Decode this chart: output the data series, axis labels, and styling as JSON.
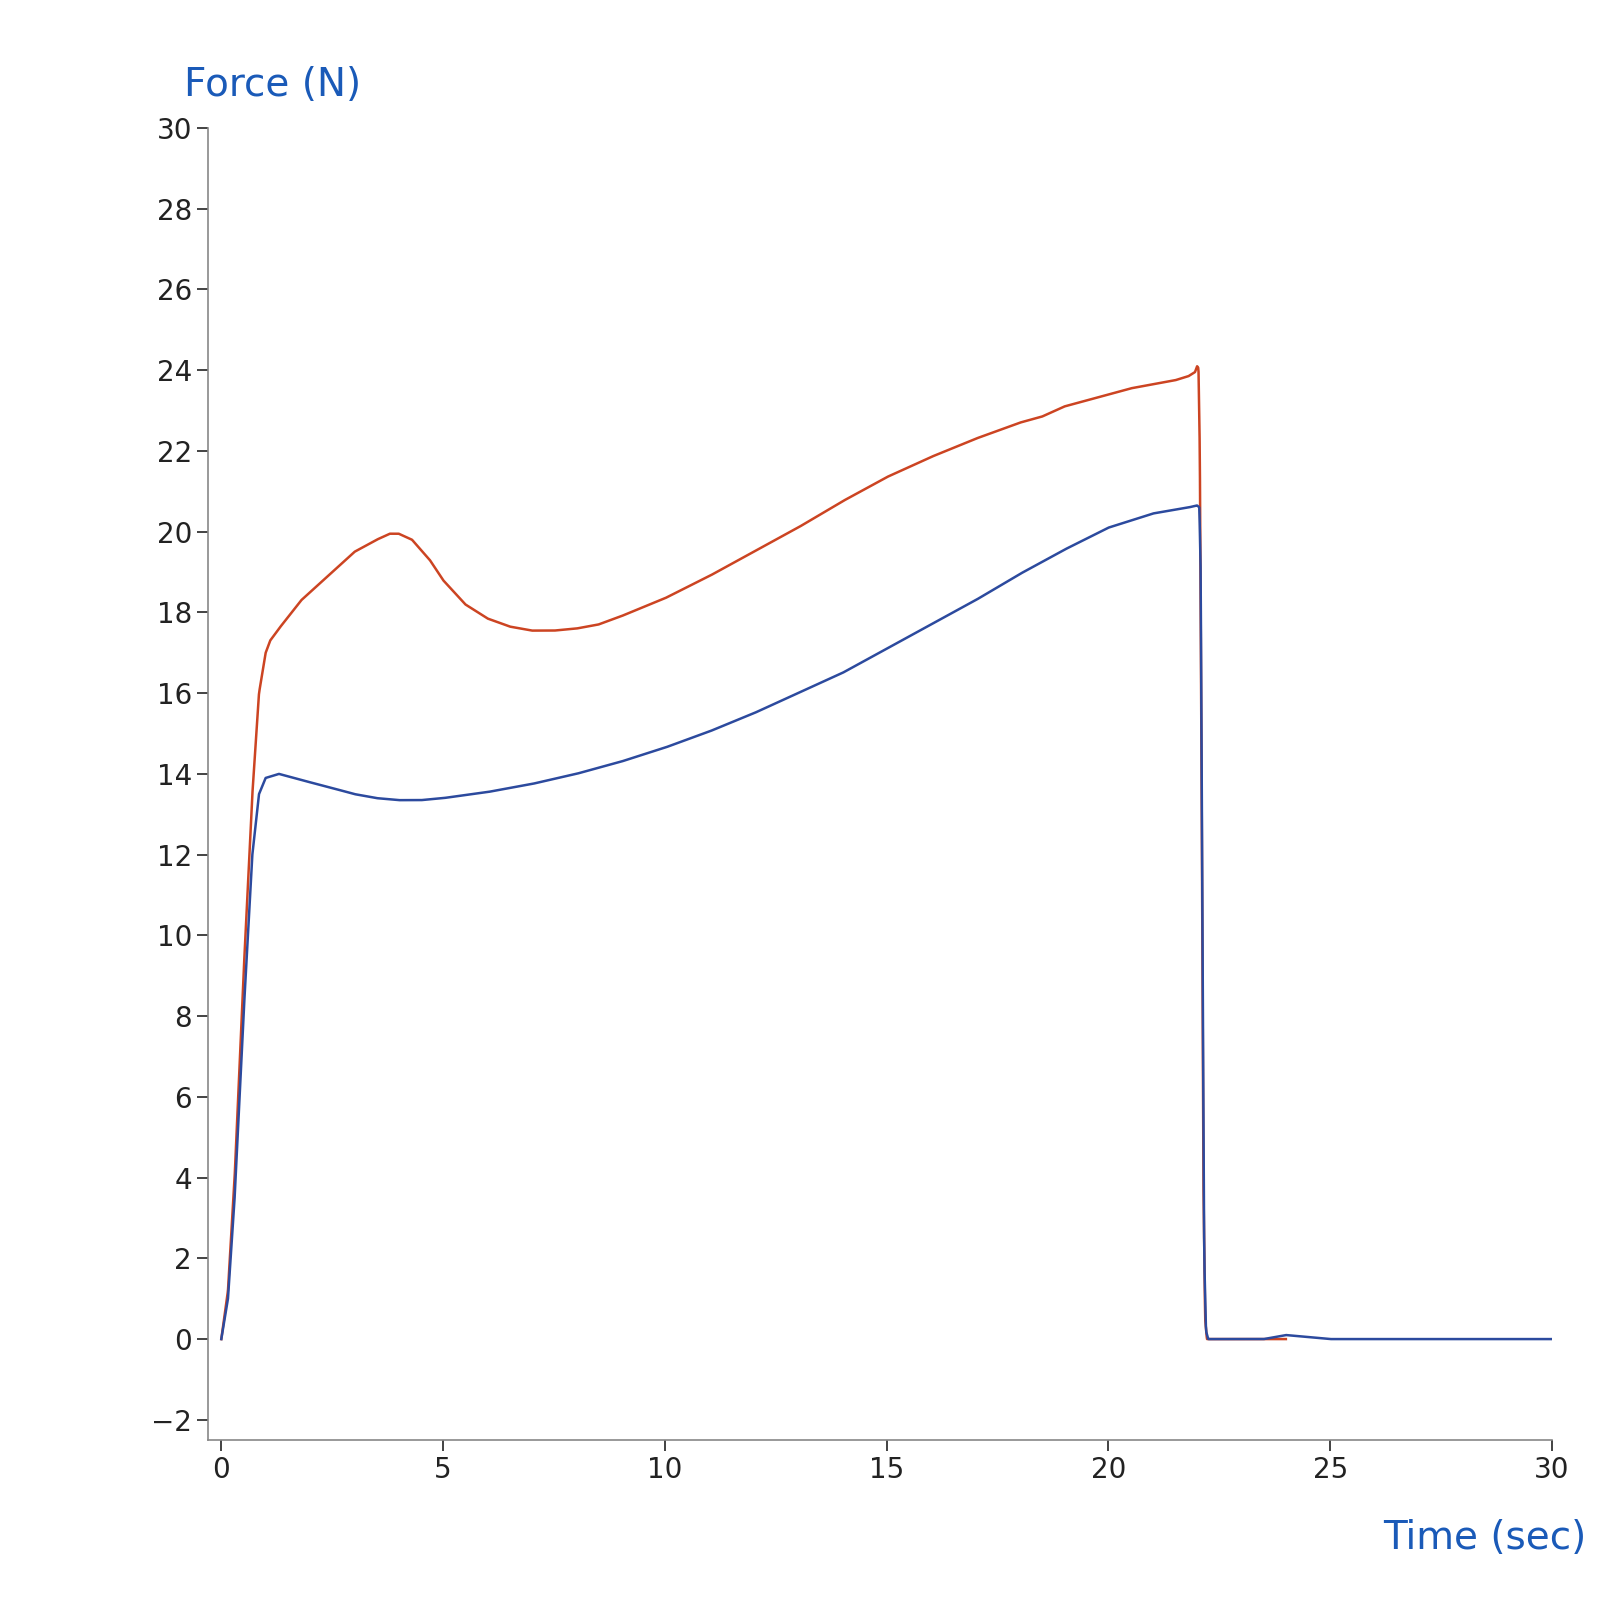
{
  "xlabel": "Time (sec)",
  "ylabel": "Force (N)",
  "xlabel_color": "#1a5ab8",
  "ylabel_color": "#1a5ab8",
  "tick_label_color": "#222222",
  "spine_color": "#888888",
  "xlim": [
    -0.3,
    30
  ],
  "ylim": [
    -2.5,
    30
  ],
  "xticks": [
    0,
    5,
    10,
    15,
    20,
    25,
    30
  ],
  "yticks": [
    -2,
    0,
    2,
    4,
    6,
    8,
    10,
    12,
    14,
    16,
    18,
    20,
    22,
    24,
    26,
    28,
    30
  ],
  "blue_color": "#2c4a9e",
  "red_color": "#cc4422",
  "figsize": [
    16,
    16
  ],
  "dpi": 100,
  "tick_fontsize": 20,
  "label_fontsize": 28,
  "blue_curve": {
    "points": [
      [
        0,
        0
      ],
      [
        0.15,
        1.0
      ],
      [
        0.3,
        3.5
      ],
      [
        0.5,
        8.0
      ],
      [
        0.7,
        12.0
      ],
      [
        0.85,
        13.5
      ],
      [
        1.0,
        13.9
      ],
      [
        1.3,
        14.0
      ],
      [
        1.8,
        13.85
      ],
      [
        2.5,
        13.65
      ],
      [
        3.0,
        13.5
      ],
      [
        3.5,
        13.4
      ],
      [
        4.0,
        13.35
      ],
      [
        4.5,
        13.35
      ],
      [
        5.0,
        13.4
      ],
      [
        6.0,
        13.55
      ],
      [
        7.0,
        13.75
      ],
      [
        8.0,
        14.0
      ],
      [
        9.0,
        14.3
      ],
      [
        10.0,
        14.65
      ],
      [
        11.0,
        15.05
      ],
      [
        12.0,
        15.5
      ],
      [
        13.0,
        16.0
      ],
      [
        14.0,
        16.5
      ],
      [
        15.0,
        17.1
      ],
      [
        16.0,
        17.7
      ],
      [
        17.0,
        18.3
      ],
      [
        18.0,
        18.95
      ],
      [
        19.0,
        19.55
      ],
      [
        20.0,
        20.1
      ],
      [
        21.0,
        20.45
      ],
      [
        21.8,
        20.6
      ],
      [
        22.0,
        20.65
      ],
      [
        22.05,
        20.6
      ],
      [
        22.08,
        19.0
      ],
      [
        22.12,
        10.0
      ],
      [
        22.16,
        2.0
      ],
      [
        22.2,
        0.2
      ],
      [
        22.25,
        0.0
      ],
      [
        23.5,
        0.0
      ],
      [
        24.0,
        0.1
      ],
      [
        24.5,
        0.05
      ],
      [
        25.0,
        0.0
      ],
      [
        30.0,
        0.0
      ]
    ]
  },
  "red_curve": {
    "points": [
      [
        0,
        0
      ],
      [
        0.15,
        1.2
      ],
      [
        0.3,
        4.0
      ],
      [
        0.5,
        9.0
      ],
      [
        0.7,
        13.5
      ],
      [
        0.85,
        16.0
      ],
      [
        1.0,
        17.0
      ],
      [
        1.1,
        17.3
      ],
      [
        1.3,
        17.6
      ],
      [
        1.8,
        18.3
      ],
      [
        2.5,
        19.0
      ],
      [
        3.0,
        19.5
      ],
      [
        3.5,
        19.8
      ],
      [
        3.8,
        19.95
      ],
      [
        4.0,
        19.95
      ],
      [
        4.3,
        19.8
      ],
      [
        4.7,
        19.3
      ],
      [
        5.0,
        18.8
      ],
      [
        5.5,
        18.2
      ],
      [
        6.0,
        17.85
      ],
      [
        6.5,
        17.65
      ],
      [
        7.0,
        17.55
      ],
      [
        7.5,
        17.55
      ],
      [
        8.0,
        17.6
      ],
      [
        8.5,
        17.7
      ],
      [
        9.0,
        17.9
      ],
      [
        10.0,
        18.35
      ],
      [
        11.0,
        18.9
      ],
      [
        12.0,
        19.5
      ],
      [
        13.0,
        20.1
      ],
      [
        14.0,
        20.75
      ],
      [
        15.0,
        21.35
      ],
      [
        16.0,
        21.85
      ],
      [
        17.0,
        22.3
      ],
      [
        18.0,
        22.7
      ],
      [
        18.5,
        22.85
      ],
      [
        19.0,
        23.1
      ],
      [
        19.5,
        23.25
      ],
      [
        20.0,
        23.4
      ],
      [
        20.5,
        23.55
      ],
      [
        21.0,
        23.65
      ],
      [
        21.5,
        23.75
      ],
      [
        21.8,
        23.85
      ],
      [
        21.95,
        23.95
      ],
      [
        22.0,
        24.1
      ],
      [
        22.03,
        24.05
      ],
      [
        22.06,
        22.0
      ],
      [
        22.1,
        14.0
      ],
      [
        22.14,
        4.0
      ],
      [
        22.18,
        0.5
      ],
      [
        22.22,
        0.0
      ],
      [
        24.0,
        0.0
      ]
    ]
  }
}
